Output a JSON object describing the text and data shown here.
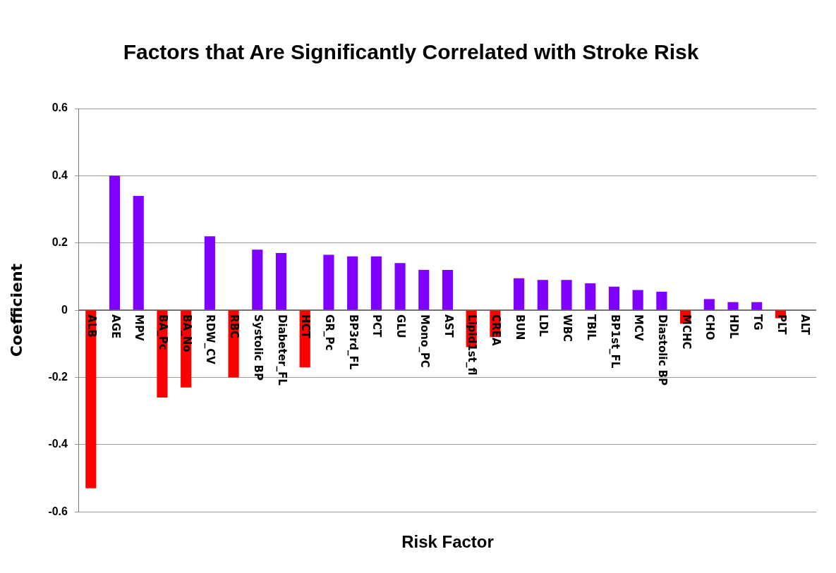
{
  "chart_data": {
    "type": "bar",
    "title": "Factors that Are Significantly Correlated with Stroke Risk",
    "xlabel": "Risk Factor",
    "ylabel": "Coefficient",
    "categories": [
      "ALB",
      "AGE",
      "MPV",
      "BA_Pc",
      "BA_No",
      "RDW_CV",
      "RBC",
      "Systolic BP",
      "Diabeter_FL",
      "HCT",
      "GR_Pc",
      "BP3rd_FL",
      "PCT",
      "GLU",
      "Mono_PC",
      "AST",
      "Lipid1st_fl",
      "CREA",
      "BUN",
      "LDL",
      "WBC",
      "TBIL",
      "BP1st_FL",
      "MCV",
      "Diastolic BP",
      "MCHC",
      "CHO",
      "HDL",
      "TG",
      "PLT",
      "ALT"
    ],
    "values": [
      -0.53,
      0.4,
      0.34,
      -0.26,
      -0.23,
      0.22,
      -0.2,
      0.18,
      0.17,
      -0.17,
      0.165,
      0.16,
      0.16,
      0.14,
      0.12,
      0.12,
      -0.11,
      -0.08,
      0.095,
      0.09,
      0.09,
      0.08,
      0.07,
      0.06,
      0.055,
      -0.04,
      0.033,
      0.024,
      0.024,
      -0.024,
      0
    ],
    "colors": [
      "#ff0000",
      "#8000ff",
      "#8000ff",
      "#ff0000",
      "#ff0000",
      "#8000ff",
      "#ff0000",
      "#8000ff",
      "#8000ff",
      "#ff0000",
      "#8000ff",
      "#8000ff",
      "#8000ff",
      "#8000ff",
      "#8000ff",
      "#8000ff",
      "#ff0000",
      "#ff0000",
      "#8000ff",
      "#8000ff",
      "#8000ff",
      "#8000ff",
      "#8000ff",
      "#8000ff",
      "#8000ff",
      "#ff0000",
      "#8000ff",
      "#8000ff",
      "#8000ff",
      "#ff0000",
      "#8000ff"
    ],
    "ylim": [
      -0.6,
      0.6
    ],
    "yticks": [
      -0.6,
      -0.4,
      -0.2,
      0,
      0.2,
      0.4,
      0.6
    ],
    "grid": "y",
    "legend": false
  }
}
